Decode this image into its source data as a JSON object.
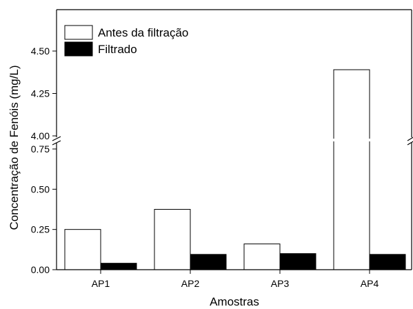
{
  "chart_data": {
    "type": "bar",
    "categories": [
      "AP1",
      "AP2",
      "AP3",
      "AP4"
    ],
    "series": [
      {
        "name": "Antes da filtração",
        "values": [
          0.25,
          0.375,
          0.16,
          4.39
        ],
        "color": "#ffffff"
      },
      {
        "name": "Filtrado",
        "values": [
          0.04,
          0.095,
          0.1,
          0.095
        ],
        "color": "#000000"
      }
    ],
    "xlabel": "Amostras",
    "ylabel": "Concentração de Fenóis (mg/L)",
    "ylim_lower": [
      0,
      0.78
    ],
    "ylim_upper": [
      4.0,
      4.74
    ],
    "y_break": true,
    "yticks_lower": [
      "0.00",
      "0.25",
      "0.50",
      "0.75"
    ],
    "yticks_upper": [
      "4.00",
      "4.25",
      "4.50"
    ],
    "legend_position": "top-left",
    "grid": false
  }
}
